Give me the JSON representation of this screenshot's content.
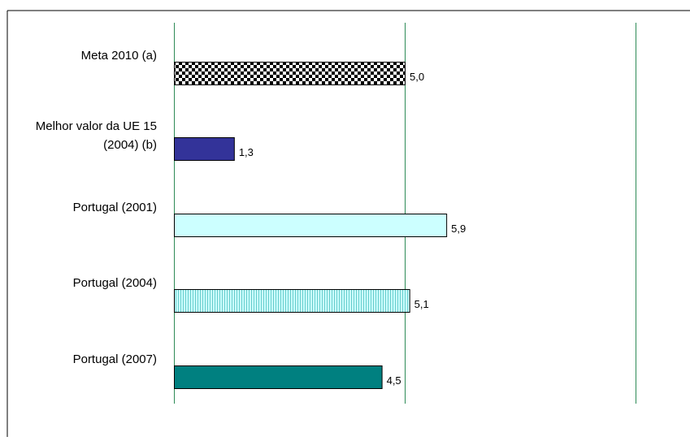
{
  "chart_data": {
    "type": "bar",
    "orientation": "horizontal",
    "categories": [
      [
        "Meta 2010 (a)"
      ],
      [
        "Melhor valor da UE 15",
        "(2004) (b)"
      ],
      [
        "Portugal (2001)"
      ],
      [
        "Portugal (2004)"
      ],
      [
        "Portugal (2007)"
      ]
    ],
    "values": [
      5.0,
      1.3,
      5.9,
      5.1,
      4.5
    ],
    "value_labels": [
      "5,0",
      "1,3",
      "5,9",
      "5,1",
      "4,5"
    ],
    "bar_styles": [
      {
        "fill": "checker",
        "colors": [
          "#000000",
          "#ffffff"
        ]
      },
      {
        "fill": "solid",
        "colors": [
          "#333399"
        ]
      },
      {
        "fill": "solid",
        "colors": [
          "#ccffff"
        ]
      },
      {
        "fill": "vstripes",
        "colors": [
          "#66cccc",
          "#ccffff"
        ]
      },
      {
        "fill": "solid",
        "colors": [
          "#008080"
        ]
      }
    ],
    "xlim": [
      0,
      10
    ],
    "gridlines_x": [
      0,
      5,
      10
    ],
    "gridline_color": "#2e8b57",
    "title": "",
    "xlabel": "",
    "ylabel": "",
    "legend": "none"
  }
}
